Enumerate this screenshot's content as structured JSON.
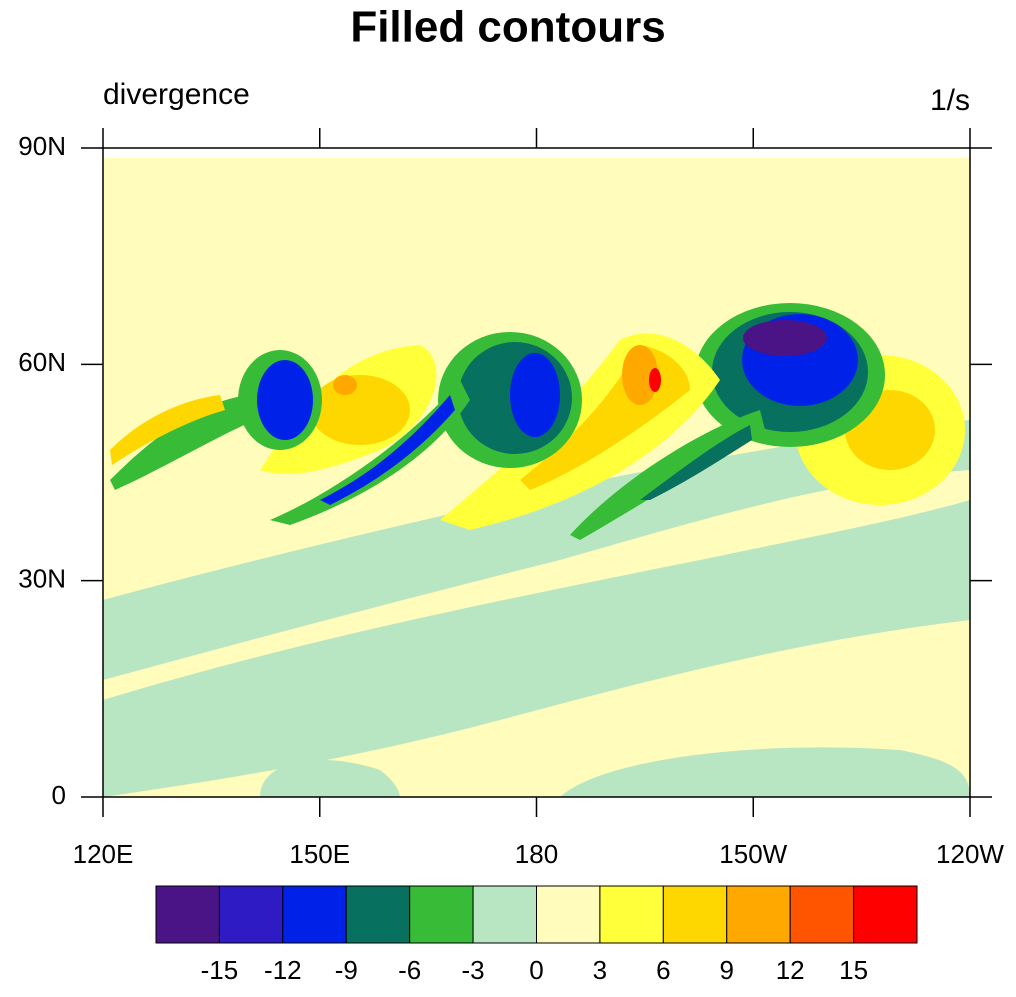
{
  "chart_data": {
    "type": "contour",
    "title": "Filled contours",
    "left_label": "divergence",
    "right_label": "1/s",
    "xlim": [
      120,
      240
    ],
    "xticks": [
      {
        "value": 120,
        "label": "120E"
      },
      {
        "value": 150,
        "label": "150E"
      },
      180,
      {
        "value": 210,
        "label": "150W"
      },
      {
        "value": 240,
        "label": "120W"
      }
    ],
    "ylim": [
      0,
      90
    ],
    "yticks": [
      0,
      {
        "value": 30,
        "label": "30N"
      },
      {
        "value": 60,
        "label": "60N"
      },
      {
        "value": 90,
        "label": "90N"
      }
    ],
    "colorbar": {
      "levels": [
        -15,
        -12,
        -9,
        -6,
        -3,
        0,
        3,
        6,
        9,
        12,
        15
      ],
      "colors": [
        "#4a1486",
        "#2f1bc4",
        "#0022e8",
        "#08705e",
        "#38bc38",
        "#b9e6c2",
        "#fffcbc",
        "#ffff3a",
        "#ffd700",
        "#ffa800",
        "#ff5500",
        "#ff0000"
      ]
    }
  }
}
